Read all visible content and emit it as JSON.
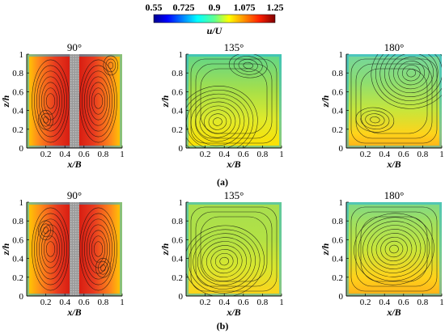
{
  "colorbar": {
    "label": "u/U",
    "tick_labels": [
      "0.55",
      "0.725",
      "0.9",
      "1.075",
      "1.25"
    ],
    "range": [
      0.55,
      1.25
    ],
    "colormap": "jet"
  },
  "panel_rows": [
    {
      "label": "(a)"
    },
    {
      "label": "(b)"
    }
  ],
  "chart_data": [
    {
      "type": "heatmap",
      "row": "(a)",
      "title": "90°",
      "xlabel": "x/B",
      "ylabel": "z/h",
      "x_ticks": [
        "0.2",
        "0.4",
        "0.6",
        "0.8",
        "1"
      ],
      "y_ticks": [
        "0",
        "0.2",
        "0.4",
        "0.6",
        "0.8",
        "1"
      ],
      "xlim": [
        0,
        1
      ],
      "ylim": [
        0,
        1
      ],
      "obstacle": true,
      "color_stops": [
        [
          0.0,
          "#ffd000"
        ],
        [
          0.12,
          "#ff8a1a"
        ],
        [
          0.3,
          "#e83a1f"
        ],
        [
          0.45,
          "#d81e12"
        ],
        [
          0.5,
          "#909090"
        ],
        [
          0.55,
          "#d81e12"
        ],
        [
          0.7,
          "#e83a1f"
        ],
        [
          0.88,
          "#ff8a1a"
        ],
        [
          1.0,
          "#ffd000"
        ]
      ],
      "streamline_pattern": "side-channels",
      "vortices": [
        [
          0.88,
          0.88
        ],
        [
          0.2,
          0.3
        ]
      ]
    },
    {
      "type": "heatmap",
      "row": "(a)",
      "title": "135°",
      "xlabel": "x/B",
      "ylabel": "z/h",
      "x_ticks": [
        "0.2",
        "0.4",
        "0.6",
        "0.8",
        "1"
      ],
      "y_ticks": [
        "0",
        "0.2",
        "0.4",
        "0.6",
        "0.8",
        "1"
      ],
      "xlim": [
        0,
        1
      ],
      "ylim": [
        0,
        1
      ],
      "obstacle": false,
      "color_stops": [
        [
          0.0,
          "#ffe000"
        ],
        [
          0.3,
          "#e0ea2a"
        ],
        [
          0.6,
          "#a8e048"
        ],
        [
          1.0,
          "#5fd68a"
        ]
      ],
      "streamline_pattern": "swirl",
      "vortices": [
        [
          0.33,
          0.28
        ],
        [
          0.65,
          0.88
        ]
      ]
    },
    {
      "type": "heatmap",
      "row": "(a)",
      "title": "180°",
      "xlabel": "x/B",
      "ylabel": "z/h",
      "x_ticks": [
        "0.2",
        "0.4",
        "0.6",
        "0.8",
        "1"
      ],
      "y_ticks": [
        "0",
        "0.2",
        "0.4",
        "0.6",
        "0.8",
        "1"
      ],
      "xlim": [
        0,
        1
      ],
      "ylim": [
        0,
        1
      ],
      "obstacle": false,
      "color_stops": [
        [
          0.0,
          "#ffb01a"
        ],
        [
          0.15,
          "#ffd31a"
        ],
        [
          0.4,
          "#c8e63a"
        ],
        [
          0.7,
          "#8ede70"
        ],
        [
          1.0,
          "#72d69e"
        ]
      ],
      "streamline_pattern": "swirl",
      "vortices": [
        [
          0.68,
          0.8
        ],
        [
          0.3,
          0.3
        ]
      ]
    },
    {
      "type": "heatmap",
      "row": "(b)",
      "title": "90°",
      "xlabel": "x/B",
      "ylabel": "z/h",
      "x_ticks": [
        "0.2",
        "0.4",
        "0.6",
        "0.8",
        "1"
      ],
      "y_ticks": [
        "0",
        "0.2",
        "0.4",
        "0.6",
        "0.8",
        "1"
      ],
      "xlim": [
        0,
        1
      ],
      "ylim": [
        0,
        1
      ],
      "obstacle": true,
      "color_stops": [
        [
          0.0,
          "#ffd000"
        ],
        [
          0.15,
          "#ff8a1a"
        ],
        [
          0.32,
          "#e83a1f"
        ],
        [
          0.45,
          "#d81e12"
        ],
        [
          0.5,
          "#909090"
        ],
        [
          0.55,
          "#d81e12"
        ],
        [
          0.7,
          "#e83a1f"
        ],
        [
          0.88,
          "#ff8a1a"
        ],
        [
          1.0,
          "#ffd000"
        ]
      ],
      "streamline_pattern": "side-channels",
      "vortices": [
        [
          0.2,
          0.7
        ],
        [
          0.8,
          0.3
        ]
      ]
    },
    {
      "type": "heatmap",
      "row": "(b)",
      "title": "135°",
      "xlabel": "x/B",
      "ylabel": "z/h",
      "x_ticks": [
        "0.2",
        "0.4",
        "0.6",
        "0.8",
        "1"
      ],
      "y_ticks": [
        "0",
        "0.2",
        "0.4",
        "0.6",
        "0.8",
        "1"
      ],
      "xlim": [
        0,
        1
      ],
      "ylim": [
        0,
        1
      ],
      "obstacle": false,
      "color_stops": [
        [
          0.0,
          "#ffd21a"
        ],
        [
          0.3,
          "#d9e72e"
        ],
        [
          0.6,
          "#b3e244"
        ],
        [
          1.0,
          "#a6de50"
        ]
      ],
      "streamline_pattern": "swirl",
      "vortices": [
        [
          0.4,
          0.37
        ]
      ]
    },
    {
      "type": "heatmap",
      "row": "(b)",
      "title": "180°",
      "xlabel": "x/B",
      "ylabel": "z/h",
      "x_ticks": [
        "0.2",
        "0.4",
        "0.6",
        "0.8",
        "1"
      ],
      "y_ticks": [
        "0",
        "0.2",
        "0.4",
        "0.6",
        "0.8",
        "1"
      ],
      "xlim": [
        0,
        1
      ],
      "ylim": [
        0,
        1
      ],
      "obstacle": false,
      "color_stops": [
        [
          0.0,
          "#ffb01a"
        ],
        [
          0.2,
          "#ffd21a"
        ],
        [
          0.5,
          "#c8e63a"
        ],
        [
          0.8,
          "#9ee062"
        ],
        [
          1.0,
          "#7ed888"
        ]
      ],
      "streamline_pattern": "swirl",
      "vortices": [
        [
          0.5,
          0.5
        ]
      ]
    }
  ]
}
